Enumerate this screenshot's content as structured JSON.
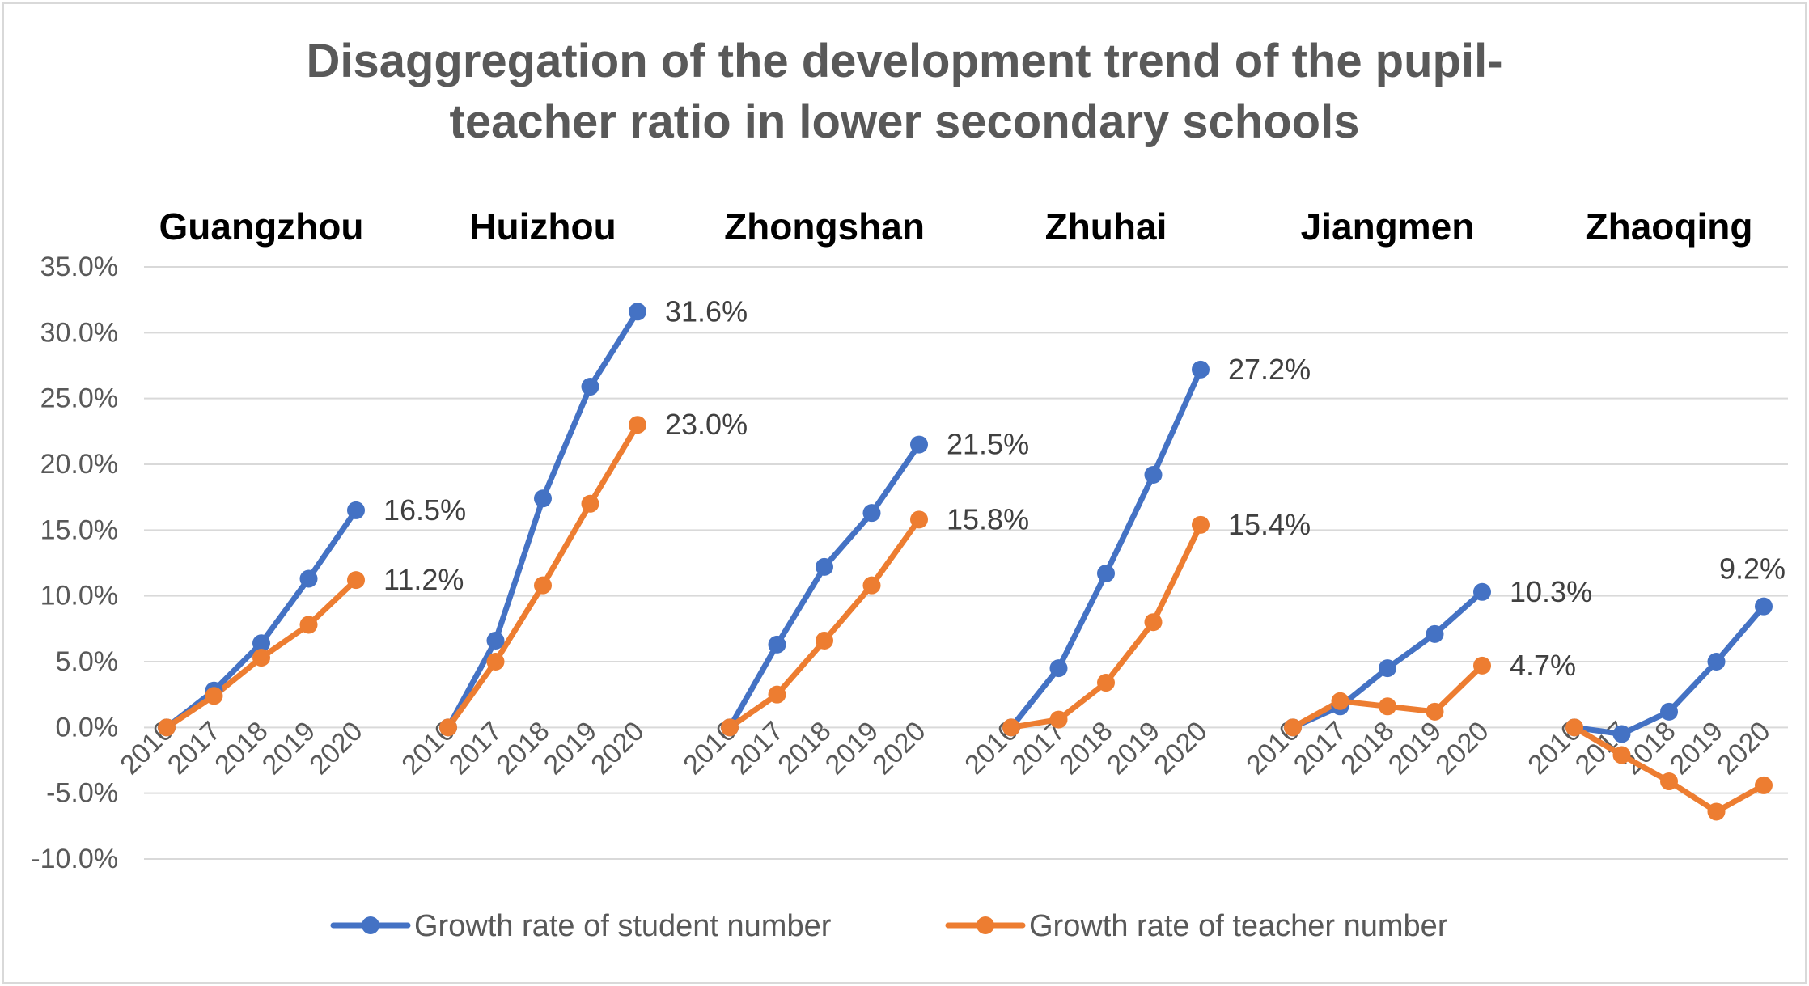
{
  "chart_data": {
    "type": "line",
    "title": "Disaggregation of the development trend of the pupil-teacher ratio in lower secondary schools",
    "title_lines": [
      "Disaggregation of the development trend of the pupil-",
      "teacher ratio in lower secondary schools"
    ],
    "ylim": [
      -10,
      35
    ],
    "ytick_step": 5,
    "ytick_labels": [
      "35.0%",
      "30.0%",
      "25.0%",
      "20.0%",
      "15.0%",
      "10.0%",
      "5.0%",
      "0.0%",
      "-5.0%",
      "-10.0%"
    ],
    "grid": true,
    "legend_position": "bottom",
    "years": [
      "2016",
      "2017",
      "2018",
      "2019",
      "2020"
    ],
    "series": [
      {
        "name": "Growth rate of student number",
        "color": "#4472C4"
      },
      {
        "name": "Growth rate of teacher number",
        "color": "#ED7D31"
      }
    ],
    "groups": [
      {
        "city": "Guangzhou",
        "student": [
          0,
          2.8,
          6.4,
          11.3,
          16.5
        ],
        "teacher": [
          0,
          2.4,
          5.3,
          7.8,
          11.2
        ],
        "student_label": "16.5%",
        "teacher_label": "11.2%"
      },
      {
        "city": "Huizhou",
        "student": [
          0,
          6.6,
          17.4,
          25.9,
          31.6
        ],
        "teacher": [
          0,
          5.0,
          10.8,
          17.0,
          23.0
        ],
        "student_label": "31.6%",
        "teacher_label": "23.0%"
      },
      {
        "city": "Zhongshan",
        "student": [
          0,
          6.3,
          12.2,
          16.3,
          21.5
        ],
        "teacher": [
          0,
          2.5,
          6.6,
          10.8,
          15.8
        ],
        "student_label": "21.5%",
        "teacher_label": "15.8%"
      },
      {
        "city": "Zhuhai",
        "student": [
          0,
          4.5,
          11.7,
          19.2,
          27.2
        ],
        "teacher": [
          0,
          0.6,
          3.4,
          8.0,
          15.4
        ],
        "student_label": "27.2%",
        "teacher_label": "15.4%"
      },
      {
        "city": "Jiangmen",
        "student": [
          0,
          1.6,
          4.5,
          7.1,
          10.3
        ],
        "teacher": [
          0,
          2.0,
          1.6,
          1.2,
          4.7
        ],
        "student_label": "10.3%",
        "teacher_label": "4.7%"
      },
      {
        "city": "Zhaoqing",
        "student": [
          0,
          -0.5,
          1.2,
          5.0,
          9.2
        ],
        "teacher": [
          0,
          -2.1,
          -4.1,
          -6.4,
          -4.4
        ],
        "student_label": "9.2%",
        "teacher_label": ""
      }
    ]
  }
}
